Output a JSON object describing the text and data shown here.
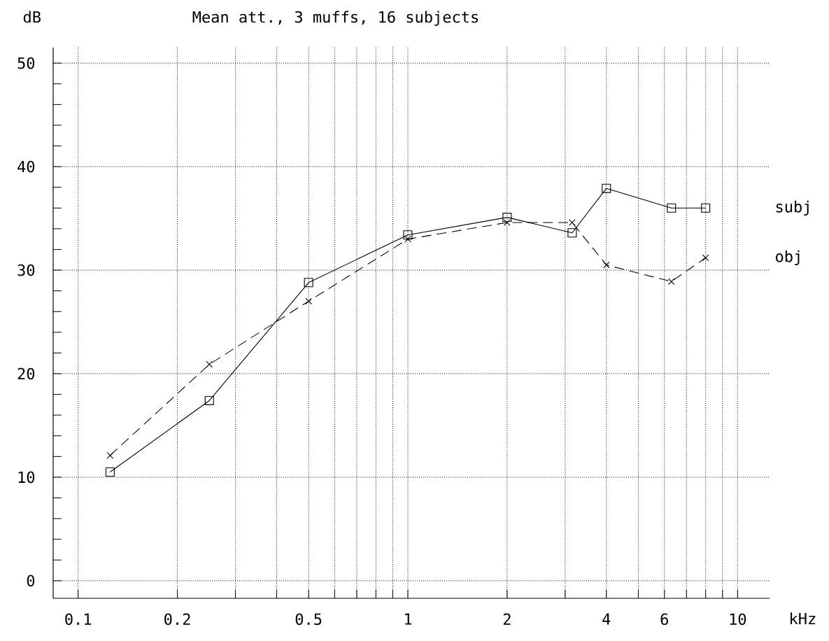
{
  "chart_data": {
    "type": "line",
    "title": "Mean att., 3 muffs, 16 subjects",
    "xlabel": "kHz",
    "ylabel": "dB",
    "log": "x",
    "grid": true,
    "xlim": [
      0.084,
      12.5
    ],
    "ylim": [
      -1.7,
      51.5
    ],
    "xticks": [
      0.1,
      0.2,
      {
        "value": 0.3,
        "label": null
      },
      {
        "value": 0.4,
        "label": null
      },
      0.5,
      {
        "value": 0.6,
        "label": null
      },
      {
        "value": 0.7,
        "label": null
      },
      {
        "value": 0.8,
        "label": null
      },
      {
        "value": 0.9,
        "label": null
      },
      1,
      2,
      {
        "value": 3,
        "label": null
      },
      4,
      {
        "value": 5,
        "label": null
      },
      6,
      {
        "value": 7,
        "label": null
      },
      {
        "value": 8,
        "label": null
      },
      {
        "value": 9,
        "label": null
      },
      10
    ],
    "yticks": [
      0,
      {
        "value": 2,
        "label": null
      },
      {
        "value": 4,
        "label": null
      },
      {
        "value": 6,
        "label": null
      },
      {
        "value": 8,
        "label": null
      },
      10,
      {
        "value": 12,
        "label": null
      },
      {
        "value": 14,
        "label": null
      },
      {
        "value": 16,
        "label": null
      },
      {
        "value": 18,
        "label": null
      },
      20,
      {
        "value": 22,
        "label": null
      },
      {
        "value": 24,
        "label": null
      },
      {
        "value": 26,
        "label": null
      },
      {
        "value": 28,
        "label": null
      },
      30,
      {
        "value": 32,
        "label": null
      },
      {
        "value": 34,
        "label": null
      },
      {
        "value": 36,
        "label": null
      },
      {
        "value": 38,
        "label": null
      },
      40,
      {
        "value": 42,
        "label": null
      },
      {
        "value": 44,
        "label": null
      },
      {
        "value": 46,
        "label": null
      },
      {
        "value": 48,
        "label": null
      },
      50
    ],
    "x": [
      0.125,
      0.25,
      0.5,
      1,
      2,
      3.15,
      4,
      6.3,
      8
    ],
    "series": [
      {
        "name": "subj",
        "color": "#000000",
        "marker": "square",
        "line_style": "solid",
        "values": [
          10.5,
          17.4,
          28.8,
          33.4,
          35.1,
          33.6,
          37.9,
          36.0,
          36.0
        ]
      },
      {
        "name": "obj",
        "color": "#000000",
        "marker": "cross",
        "line_style": "dashed",
        "values": [
          12.1,
          20.9,
          27.0,
          33.0,
          34.6,
          34.6,
          30.5,
          28.9,
          31.2
        ]
      }
    ]
  }
}
